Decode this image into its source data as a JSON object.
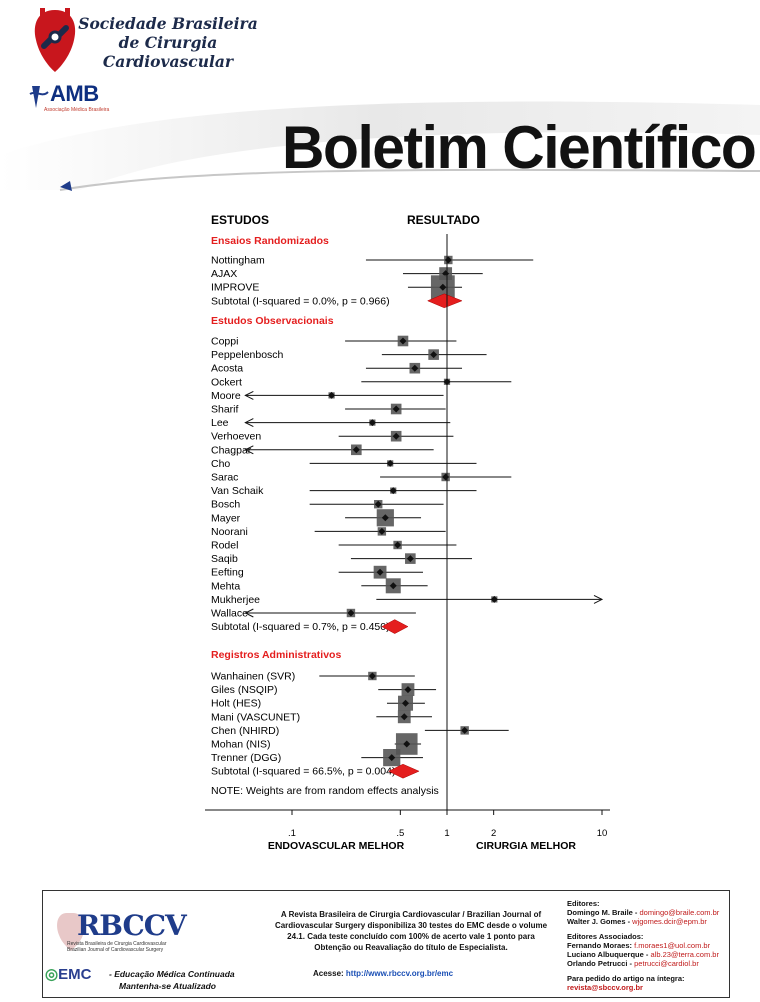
{
  "header": {
    "society_name": [
      "Sociedade Brasileira",
      "de Cirurgia",
      "Cardiovascular"
    ],
    "amb": "AMB",
    "amb_sub": "Associação Médica Brasileira",
    "bulletin_title": "Boletim Científico"
  },
  "chart_data": {
    "type": "forest",
    "columns": {
      "studies": "ESTUDOS",
      "result": "RESULTADO"
    },
    "x_axis": {
      "scale": "log",
      "ticks": [
        ".1",
        ".5",
        "1",
        "2",
        "10"
      ],
      "left_label": "ENDOVASCULAR MELHOR",
      "right_label": "CIRURGIA MELHOR"
    },
    "groups": [
      {
        "name": "Ensaios Randomizados",
        "studies": [
          {
            "name": "Nottingham",
            "or": 1.02,
            "ci": [
              0.3,
              3.6
            ],
            "weight": 2
          },
          {
            "name": "AJAX",
            "or": 0.98,
            "ci": [
              0.52,
              1.7
            ],
            "weight": 4
          },
          {
            "name": "IMPROVE",
            "or": 0.94,
            "ci": [
              0.56,
              1.25
            ],
            "weight": 9
          }
        ],
        "subtotal": {
          "label": "Subtotal  (I-squared = 0.0%, p = 0.966)",
          "or": 0.96,
          "ci": [
            0.75,
            1.25
          ]
        }
      },
      {
        "name": "Estudos Observacionais",
        "studies": [
          {
            "name": "Coppi",
            "or": 0.52,
            "ci": [
              0.22,
              1.15
            ],
            "weight": 3
          },
          {
            "name": "Peppelenbosch",
            "or": 0.82,
            "ci": [
              0.38,
              1.8
            ],
            "weight": 3
          },
          {
            "name": "Acosta",
            "or": 0.62,
            "ci": [
              0.3,
              1.25
            ],
            "weight": 3
          },
          {
            "name": "Ockert",
            "or": 1.0,
            "ci": [
              0.28,
              2.6
            ],
            "weight": 1
          },
          {
            "name": "Moore",
            "or": 0.18,
            "ci": [
              0.05,
              0.95
            ],
            "weight": 1,
            "arrow_left": true
          },
          {
            "name": "Sharif",
            "or": 0.47,
            "ci": [
              0.22,
              0.98
            ],
            "weight": 3
          },
          {
            "name": "Lee",
            "or": 0.33,
            "ci": [
              0.05,
              1.05
            ],
            "weight": 1,
            "arrow_left": true
          },
          {
            "name": "Verhoeven",
            "or": 0.47,
            "ci": [
              0.2,
              1.1
            ],
            "weight": 3
          },
          {
            "name": "Chagpar",
            "or": 0.26,
            "ci": [
              0.05,
              0.82
            ],
            "weight": 3,
            "arrow_left": true
          },
          {
            "name": "Cho",
            "or": 0.43,
            "ci": [
              0.13,
              1.55
            ],
            "weight": 1
          },
          {
            "name": "Sarac",
            "or": 0.98,
            "ci": [
              0.37,
              2.6
            ],
            "weight": 2
          },
          {
            "name": "Van Schaik",
            "or": 0.45,
            "ci": [
              0.13,
              1.55
            ],
            "weight": 1
          },
          {
            "name": "Bosch",
            "or": 0.36,
            "ci": [
              0.13,
              0.95
            ],
            "weight": 2
          },
          {
            "name": "Mayer",
            "or": 0.4,
            "ci": [
              0.22,
              0.68
            ],
            "weight": 6
          },
          {
            "name": "Noorani",
            "or": 0.38,
            "ci": [
              0.14,
              0.98
            ],
            "weight": 2
          },
          {
            "name": "Rodel",
            "or": 0.48,
            "ci": [
              0.2,
              1.15
            ],
            "weight": 2
          },
          {
            "name": "Saqib",
            "or": 0.58,
            "ci": [
              0.24,
              1.45
            ],
            "weight": 3
          },
          {
            "name": "Eefting",
            "or": 0.37,
            "ci": [
              0.2,
              0.7
            ],
            "weight": 4
          },
          {
            "name": "Mehta",
            "or": 0.45,
            "ci": [
              0.28,
              0.75
            ],
            "weight": 5
          },
          {
            "name": "Mukherjee",
            "or": 2.02,
            "ci": [
              0.35,
              10.0
            ],
            "weight": 1,
            "arrow_right": true
          },
          {
            "name": "Wallace",
            "or": 0.24,
            "ci": [
              0.05,
              0.63
            ],
            "weight": 2,
            "arrow_left": true
          }
        ],
        "subtotal": {
          "label": "Subtotal  (I-squared = 0.7%, p = 0.450)",
          "or": 0.46,
          "ci": [
            0.38,
            0.56
          ]
        }
      },
      {
        "name": "Registros Administrativos",
        "studies": [
          {
            "name": "Wanhainen (SVR)",
            "or": 0.33,
            "ci": [
              0.15,
              0.62
            ],
            "weight": 2
          },
          {
            "name": "Giles (NSQIP)",
            "or": 0.56,
            "ci": [
              0.36,
              0.85
            ],
            "weight": 4
          },
          {
            "name": "Holt (HES)",
            "or": 0.54,
            "ci": [
              0.41,
              0.72
            ],
            "weight": 5
          },
          {
            "name": "Mani (VASCUNET)",
            "or": 0.53,
            "ci": [
              0.35,
              0.8
            ],
            "weight": 4
          },
          {
            "name": "Chen (NHIRD)",
            "or": 1.3,
            "ci": [
              0.72,
              2.5
            ],
            "weight": 2
          },
          {
            "name": "Mohan (NIS)",
            "or": 0.55,
            "ci": [
              0.46,
              0.68
            ],
            "weight": 8
          },
          {
            "name": "Trenner (DGG)",
            "or": 0.44,
            "ci": [
              0.28,
              0.7
            ],
            "weight": 6
          }
        ],
        "subtotal": {
          "label": "Subtotal  (I-squared = 66.5%, p = 0.004)",
          "or": 0.52,
          "ci": [
            0.42,
            0.66
          ]
        }
      }
    ],
    "note": "NOTE: Weights are from random effects analysis",
    "colors": {
      "diamond": "#e41e1e",
      "box": "#555555",
      "line": "#111111",
      "section": "#e02020"
    }
  },
  "footer": {
    "rbccv": "RBCCV",
    "rbccv_sub1": "Revista Brasileira de Cirurgia Cardiovascular",
    "rbccv_sub2": "Brazilian Journal of Cardiovascular Surgery",
    "emc_logo": "EMC",
    "emc_line1": "- Educação Médica Continuada",
    "emc_line2": "Mantenha-se Atualizado",
    "blurb": "A Revista Brasileira de Cirurgia Cardiovascular / Brazilian Journal of Cardiovascular Surgery disponibiliza 30 testes do EMC desde o volume 24.1. Cada teste concluído com 100% de acerto vale 1 ponto para Obtenção ou Reavaliação do título de Especialista.",
    "access_label": "Acesse: ",
    "access_url": "http://www.rbccv.org.br/emc",
    "editors_head": "Editores:",
    "editors": [
      {
        "name": "Domingo M. Braile - ",
        "email": "domingo@braile.com.br"
      },
      {
        "name": "Walter J. Gomes - ",
        "email": "wjgomes.dcir@epm.br"
      }
    ],
    "assoc_head": "Editores Associados:",
    "assoc": [
      {
        "name": "Fernando Moraes: ",
        "email": "f.moraes1@uol.com.br"
      },
      {
        "name": "Luciano Albuquerque - ",
        "email": "alb.23@terra.com.br"
      },
      {
        "name": "Orlando Petrucci - ",
        "email": "petrucci@cardiol.br"
      }
    ],
    "request_head": "Para pedido do artigo na íntegra:",
    "request_email": "revista@sbccv.org.br"
  }
}
